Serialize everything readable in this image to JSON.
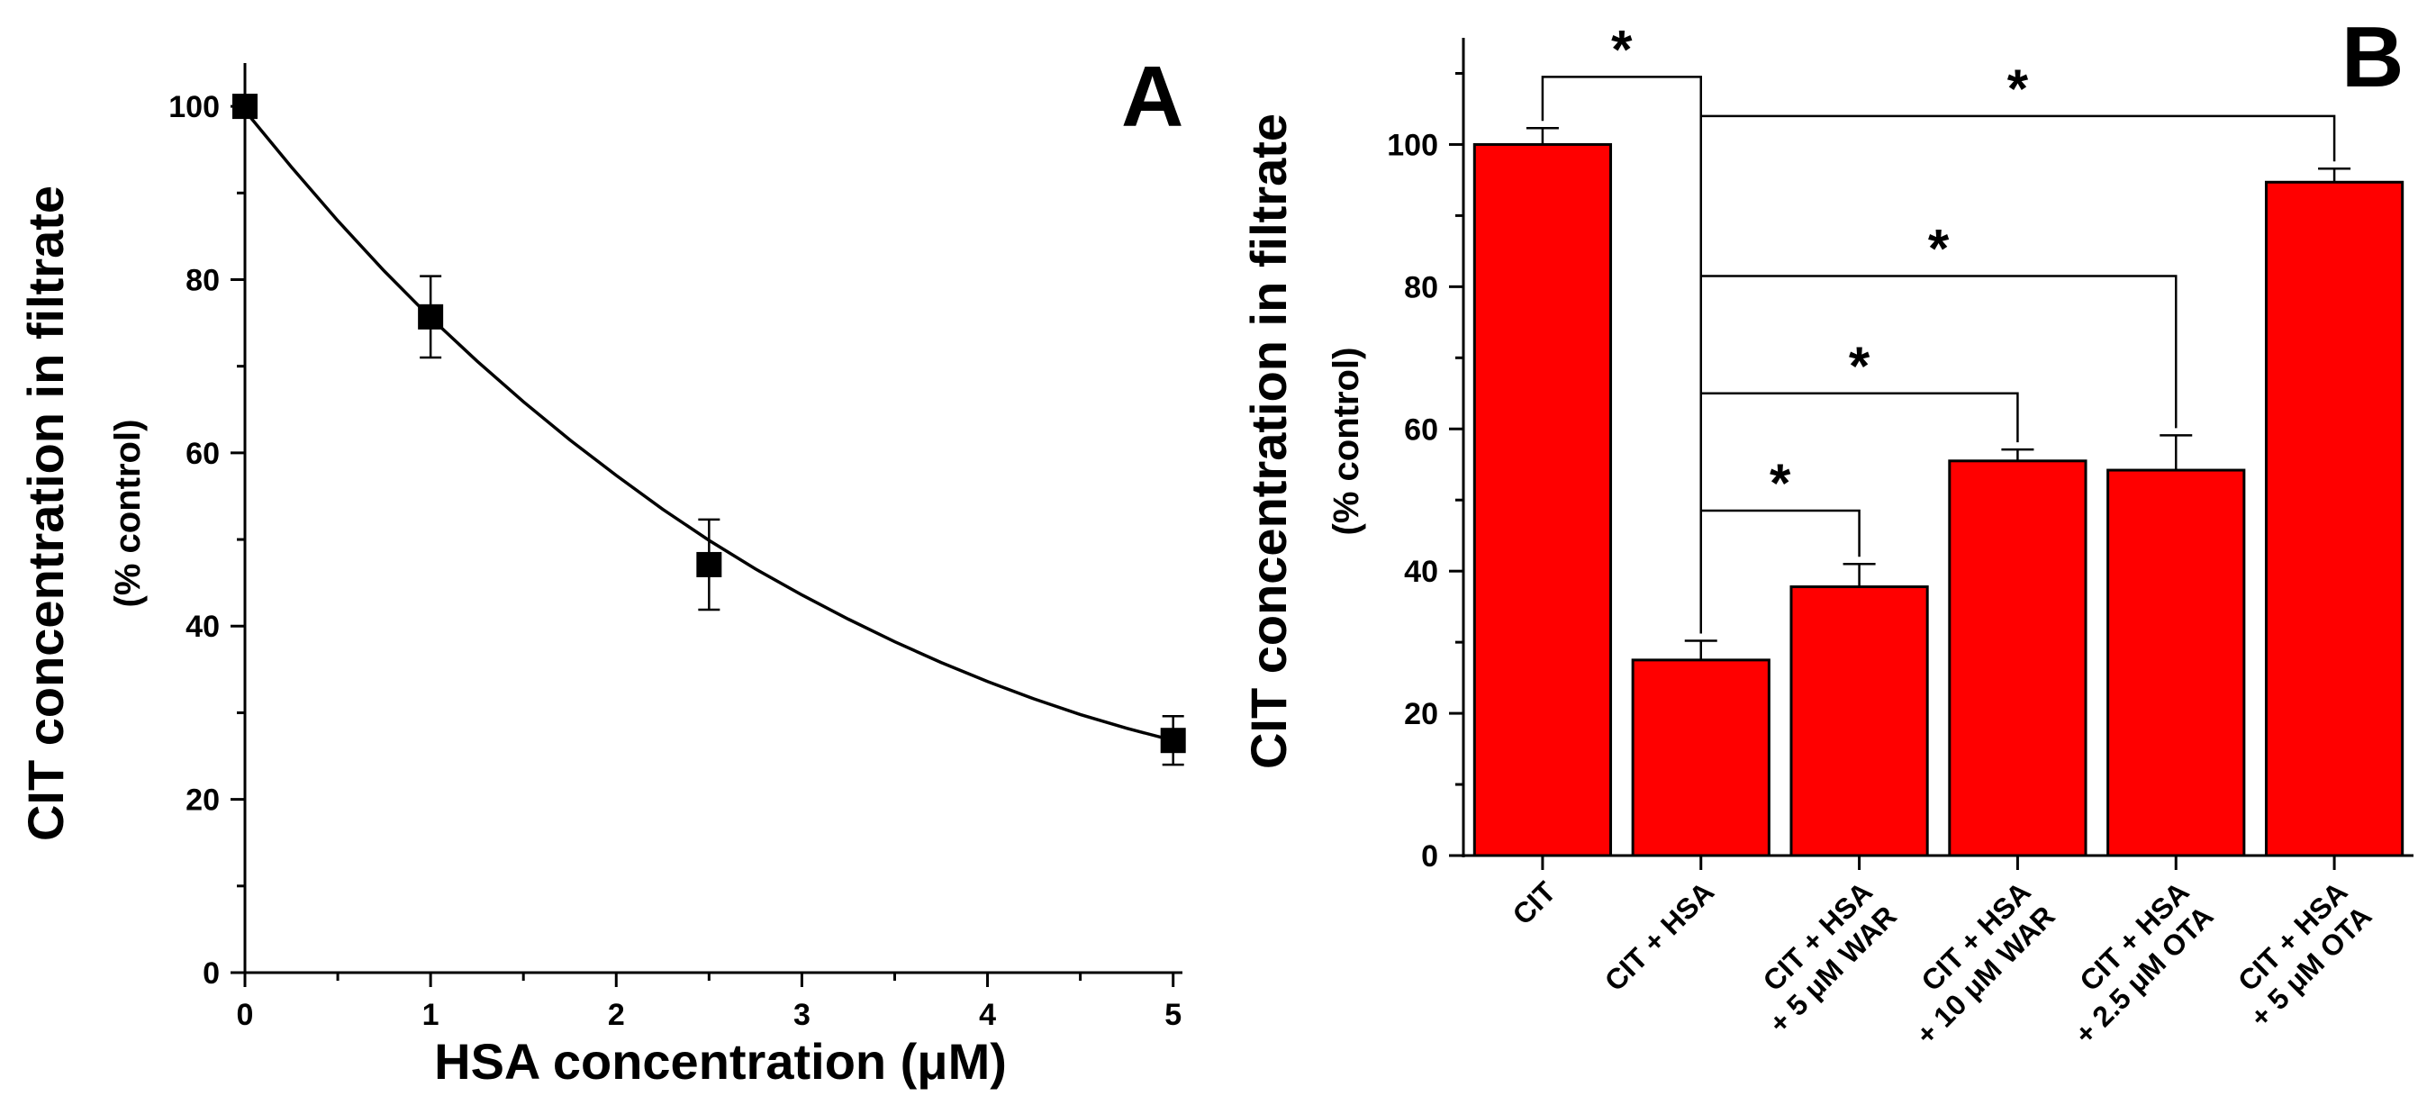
{
  "chart_data": [
    {
      "panel": "A",
      "type": "scatter",
      "panel_label": "A",
      "xlabel": "HSA concentration (μM)",
      "ylabel": "CIT concentration in filtrate",
      "ylabel_sub": "(% control)",
      "xlim": [
        0,
        5.05
      ],
      "ylim": [
        0,
        105
      ],
      "x_ticks": [
        "0",
        "1",
        "2",
        "3",
        "4",
        "5"
      ],
      "y_ticks": [
        "0",
        "20",
        "40",
        "60",
        "80",
        "100"
      ],
      "series": [
        {
          "name": "measured",
          "points": [
            {
              "x": 0,
              "y": 100,
              "err": 0
            },
            {
              "x": 1,
              "y": 75.7,
              "err": 4.7
            },
            {
              "x": 2.5,
              "y": 47.1,
              "err": 5.2
            },
            {
              "x": 5,
              "y": 26.8,
              "err": 2.8
            }
          ]
        }
      ],
      "fit_curve": {
        "name": "fit",
        "x": [
          0,
          0.25,
          0.5,
          0.75,
          1,
          1.25,
          1.5,
          1.75,
          2,
          2.25,
          2.5,
          2.75,
          3,
          3.25,
          3.5,
          3.75,
          4,
          4.25,
          4.5,
          4.75,
          5
        ],
        "y": [
          99.5,
          93.0,
          86.8,
          81.0,
          75.6,
          70.6,
          65.9,
          61.5,
          57.4,
          53.5,
          49.9,
          46.6,
          43.6,
          40.8,
          38.2,
          35.8,
          33.6,
          31.6,
          29.8,
          28.2,
          26.8
        ]
      }
    },
    {
      "panel": "B",
      "type": "bar",
      "panel_label": "B",
      "ylabel": "CIT concentration in filtrate",
      "ylabel_sub": "(% control)",
      "ylim": [
        0,
        115
      ],
      "y_ticks": [
        "0",
        "20",
        "40",
        "60",
        "80",
        "100"
      ],
      "categories": [
        [
          "CIT"
        ],
        [
          "CIT + HSA"
        ],
        [
          "CIT + HSA",
          "+ 5 μM WAR"
        ],
        [
          "CIT + HSA",
          "+ 10 μM WAR"
        ],
        [
          "CIT + HSA",
          "+ 2.5 μM OTA"
        ],
        [
          "CIT + HSA",
          "+ 5 μM OTA"
        ]
      ],
      "values": [
        100,
        27.5,
        37.8,
        55.5,
        54.2,
        94.7
      ],
      "errors": [
        2.3,
        2.7,
        3.2,
        1.6,
        4.9,
        1.9
      ],
      "bar_color": "#ff0000",
      "significance": [
        {
          "from": 0,
          "to": 1,
          "label": "*"
        },
        {
          "from": 1,
          "to": 5,
          "label": "*"
        },
        {
          "from": 1,
          "to": 4,
          "label": "*"
        },
        {
          "from": 1,
          "to": 3,
          "label": "*"
        },
        {
          "from": 1,
          "to": 2,
          "label": "*"
        }
      ]
    }
  ]
}
